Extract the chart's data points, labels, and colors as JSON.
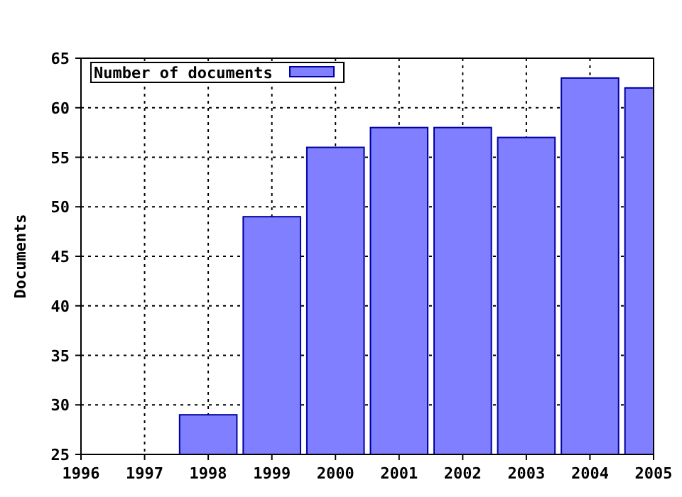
{
  "chart_data": {
    "type": "bar",
    "ylabel": "Documents",
    "x": [
      1998,
      1999,
      2000,
      2001,
      2002,
      2003,
      2004,
      2005
    ],
    "series": [
      {
        "name": "Number of documents",
        "color": "#7f7fff",
        "values": [
          29,
          49,
          56,
          58,
          58,
          57,
          63,
          62
        ]
      }
    ],
    "xlim": [
      1996,
      2005
    ],
    "xticks": [
      1996,
      1997,
      1998,
      1999,
      2000,
      2001,
      2002,
      2003,
      2004,
      2005
    ],
    "ylim": [
      25,
      65
    ],
    "yticks": [
      25,
      30,
      35,
      40,
      45,
      50,
      55,
      60,
      65
    ],
    "grid": true,
    "legend": "top left"
  }
}
